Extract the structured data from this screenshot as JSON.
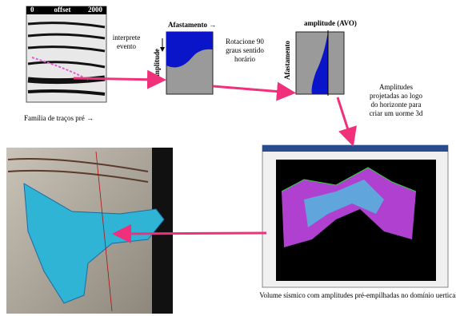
{
  "gather": {
    "ticks": [
      "0",
      "offset",
      "2000"
    ],
    "caption": "Família de traços pré →"
  },
  "step1": {
    "lines": [
      "interprete",
      "evento"
    ]
  },
  "box1": {
    "top_label": "Afastamento →",
    "side_label": "amplitude"
  },
  "step2": {
    "lines": [
      "Rotacione 90",
      "graus sentido",
      "horário"
    ]
  },
  "box2": {
    "top_label": "amplitude (AVO)",
    "side_label": "Afastamento"
  },
  "step3": {
    "lines": [
      "Amplitudes",
      "projetadas ao logo",
      "do horizonte para",
      "criar um uorme 3d"
    ]
  },
  "volume": {
    "caption": "Volume sísmico com amplitudes pré-empilhadas no domínio uertical"
  }
}
